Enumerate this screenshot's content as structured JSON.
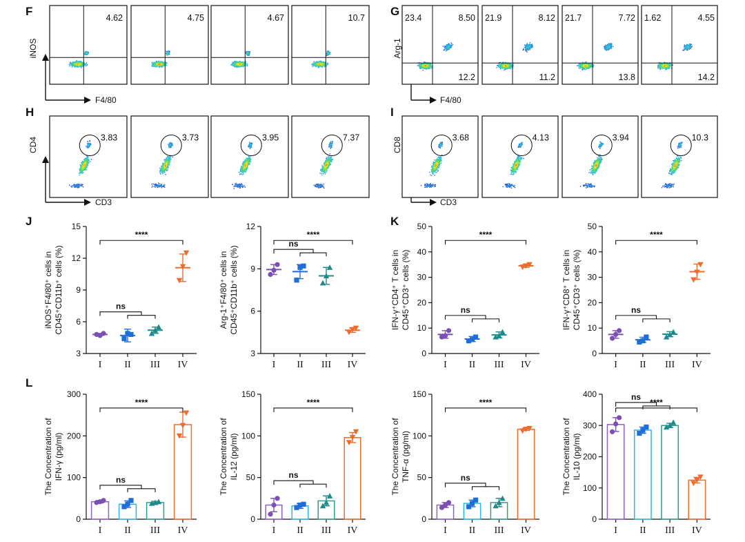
{
  "panel_labels": [
    "F",
    "G",
    "H",
    "I",
    "J",
    "K",
    "L"
  ],
  "roman": [
    "I",
    "II",
    "III",
    "IV"
  ],
  "colors": {
    "I": "#7b4fb4",
    "II": "#1f6ed8",
    "III": "#1e8a8a",
    "IV": "#ef6a2b"
  },
  "fill_colors": {
    "I": "#8e60c7",
    "II": "#29b6e8",
    "III": "#2a9d8f",
    "IV": "#ef6a2b"
  },
  "flow": {
    "F": {
      "ylabel": "iNOS",
      "xlabel": "F4/80",
      "quadrants": [
        {
          "ur": "4.62"
        },
        {
          "ur": "4.75"
        },
        {
          "ur": "4.67"
        },
        {
          "ur": "10.7"
        }
      ]
    },
    "G": {
      "ylabel": "Arg-1",
      "xlabel": "F4/80",
      "quadrants": [
        {
          "ul": "23.4",
          "ur": "8.50",
          "lr": "12.2"
        },
        {
          "ul": "21.9",
          "ur": "8.12",
          "lr": "11.2"
        },
        {
          "ul": "21.7",
          "ur": "7.72",
          "lr": "13.8"
        },
        {
          "ul": "1.62",
          "ur": "4.55",
          "lr": "14.2"
        }
      ]
    },
    "H": {
      "ylabel": "CD4",
      "xlabel": "CD3",
      "gates": [
        "3.83",
        "3.73",
        "3.95",
        "7.37"
      ]
    },
    "I": {
      "ylabel": "CD8",
      "xlabel": "CD3",
      "gates": [
        "3.68",
        "4.13",
        "3.94",
        "10.3"
      ]
    }
  },
  "chart_data": [
    {
      "id": "J1",
      "type": "scatter",
      "ylabel_l1": "iNOS⁺F4/80⁺ cells in",
      "ylabel_l2": "CD45⁺CD11b⁺ cells (%)",
      "ylim": [
        3,
        15
      ],
      "ticks": [
        "3",
        "6",
        "9",
        "12",
        "15"
      ],
      "categories": [
        "I",
        "II",
        "III",
        "IV"
      ],
      "values": [
        [
          4.8,
          4.7,
          4.9
        ],
        [
          4.4,
          4.9,
          4.8
        ],
        [
          4.9,
          5.2,
          5.5
        ],
        [
          9.9,
          11.2,
          12.5
        ]
      ],
      "means": [
        4.8,
        4.7,
        5.2,
        11.1
      ],
      "sd": [
        0.1,
        0.6,
        0.3,
        1.3
      ],
      "annotations": [
        {
          "text": "****",
          "groups": [
            0,
            3
          ]
        },
        {
          "text": "ns",
          "groups": [
            0,
            "1-2"
          ]
        }
      ]
    },
    {
      "id": "J2",
      "type": "scatter",
      "ylabel_l1": "Arg-1⁺F4/80⁺ cells in",
      "ylabel_l2": "CD45⁺CD11b⁺ cells (%)",
      "ylim": [
        3,
        12
      ],
      "ticks": [
        "3",
        "6",
        "9",
        "12"
      ],
      "categories": [
        "I",
        "II",
        "III",
        "IV"
      ],
      "values": [
        [
          8.6,
          8.9,
          9.3
        ],
        [
          8.2,
          9.1,
          9.2
        ],
        [
          8.0,
          8.5,
          9.1
        ],
        [
          4.5,
          4.7,
          4.8
        ]
      ],
      "means": [
        8.95,
        8.8,
        8.5,
        4.65
      ],
      "sd": [
        0.35,
        0.5,
        0.6,
        0.15
      ],
      "annotations": [
        {
          "text": "****",
          "groups": [
            0,
            3
          ]
        },
        {
          "text": "ns",
          "groups": [
            0,
            "1-2"
          ]
        }
      ]
    },
    {
      "id": "K1",
      "type": "scatter",
      "ylabel_l1": "IFN-γ⁺CD4⁺ T cells in",
      "ylabel_l2": "CD45⁺CD3⁺ cells (%)",
      "ylim": [
        0,
        50
      ],
      "ticks": [
        "0",
        "10",
        "20",
        "30",
        "40",
        "50"
      ],
      "categories": [
        "I",
        "II",
        "III",
        "IV"
      ],
      "values": [
        [
          6.5,
          7.0,
          9.0
        ],
        [
          5.0,
          5.5,
          6.5
        ],
        [
          6.5,
          7.0,
          8.5
        ],
        [
          34.0,
          34.5,
          35.0
        ]
      ],
      "means": [
        7.5,
        5.7,
        7.3,
        34.5
      ],
      "sd": [
        1.5,
        1.0,
        1.2,
        0.6
      ],
      "annotations": [
        {
          "text": "****",
          "groups": [
            0,
            3
          ]
        },
        {
          "text": "ns",
          "groups": [
            0,
            "1-2"
          ]
        }
      ]
    },
    {
      "id": "K2",
      "type": "scatter",
      "ylabel_l1": "IFN-γ⁺CD8⁺ T cells in",
      "ylabel_l2": "CD45⁺CD3⁺ cells (%)",
      "ylim": [
        0,
        50
      ],
      "ticks": [
        "0",
        "10",
        "20",
        "30",
        "40",
        "50"
      ],
      "categories": [
        "I",
        "II",
        "III",
        "IV"
      ],
      "values": [
        [
          6.0,
          7.5,
          9.0
        ],
        [
          4.5,
          5.0,
          6.5
        ],
        [
          6.5,
          7.5,
          8.5
        ],
        [
          29.0,
          32.0,
          35.0
        ]
      ],
      "means": [
        7.5,
        5.4,
        7.6,
        32.2
      ],
      "sd": [
        1.5,
        1.0,
        1.0,
        3.0
      ],
      "annotations": [
        {
          "text": "****",
          "groups": [
            0,
            3
          ]
        },
        {
          "text": "ns",
          "groups": [
            0,
            "1-2"
          ]
        }
      ]
    },
    {
      "id": "L1",
      "type": "bar",
      "ylabel_l1": "The Concentration of",
      "ylabel_l2": "IFN-γ (pg/ml)",
      "ylim": [
        0,
        300
      ],
      "ticks": [
        "0",
        "100",
        "200",
        "300"
      ],
      "categories": [
        "I",
        "II",
        "III",
        "IV"
      ],
      "values": [
        [
          40,
          42,
          45
        ],
        [
          30,
          36,
          45
        ],
        [
          38,
          40,
          42
        ],
        [
          200,
          225,
          255
        ]
      ],
      "means": [
        42,
        36,
        40,
        227
      ],
      "sd": [
        3,
        8,
        3,
        30
      ],
      "annotations": [
        {
          "text": "****",
          "groups": [
            0,
            3
          ]
        },
        {
          "text": "ns",
          "groups": [
            0,
            "1-2"
          ]
        }
      ]
    },
    {
      "id": "L2",
      "type": "bar",
      "ylabel_l1": "The Concentration of",
      "ylabel_l2": "IL-12 (pg/ml)",
      "ylim": [
        0,
        150
      ],
      "ticks": [
        "0",
        "50",
        "100",
        "150"
      ],
      "categories": [
        "I",
        "II",
        "III",
        "IV"
      ],
      "values": [
        [
          6,
          17,
          25
        ],
        [
          14,
          17,
          18
        ],
        [
          16,
          20,
          28
        ],
        [
          92,
          98,
          105
        ]
      ],
      "means": [
        17,
        16,
        22,
        98
      ],
      "sd": [
        8,
        3,
        6,
        6
      ],
      "annotations": [
        {
          "text": "****",
          "groups": [
            0,
            3
          ]
        },
        {
          "text": "ns",
          "groups": [
            0,
            "1-2"
          ]
        }
      ]
    },
    {
      "id": "L3",
      "type": "bar",
      "ylabel_l1": "The Concentration of",
      "ylabel_l2": "TNF-α (pg/ml)",
      "ylim": [
        0,
        150
      ],
      "ticks": [
        "0",
        "50",
        "100",
        "150"
      ],
      "categories": [
        "I",
        "II",
        "III",
        "IV"
      ],
      "values": [
        [
          14,
          17,
          20
        ],
        [
          15,
          19,
          23
        ],
        [
          16,
          20,
          25
        ],
        [
          106,
          108,
          109
        ]
      ],
      "means": [
        17,
        19,
        20,
        108
      ],
      "sd": [
        3,
        4,
        5,
        1.5
      ],
      "annotations": [
        {
          "text": "****",
          "groups": [
            0,
            3
          ]
        },
        {
          "text": "ns",
          "groups": [
            0,
            "1-2"
          ]
        }
      ]
    },
    {
      "id": "L4",
      "type": "bar",
      "ylabel_l1": "The Concentration of",
      "ylabel_l2": "IL-10 (pg/ml)",
      "ylim": [
        0,
        400
      ],
      "ticks": [
        "0",
        "100",
        "200",
        "300",
        "400"
      ],
      "categories": [
        "I",
        "II",
        "III",
        "IV"
      ],
      "values": [
        [
          280,
          305,
          325
        ],
        [
          275,
          285,
          295
        ],
        [
          295,
          300,
          310
        ],
        [
          115,
          125,
          135
        ]
      ],
      "means": [
        303,
        285,
        300,
        125
      ],
      "sd": [
        22,
        10,
        7,
        9
      ],
      "annotations": [
        {
          "text": "****",
          "groups": [
            0,
            3
          ]
        },
        {
          "text": "ns",
          "groups": [
            0,
            "1-2"
          ]
        }
      ]
    }
  ]
}
